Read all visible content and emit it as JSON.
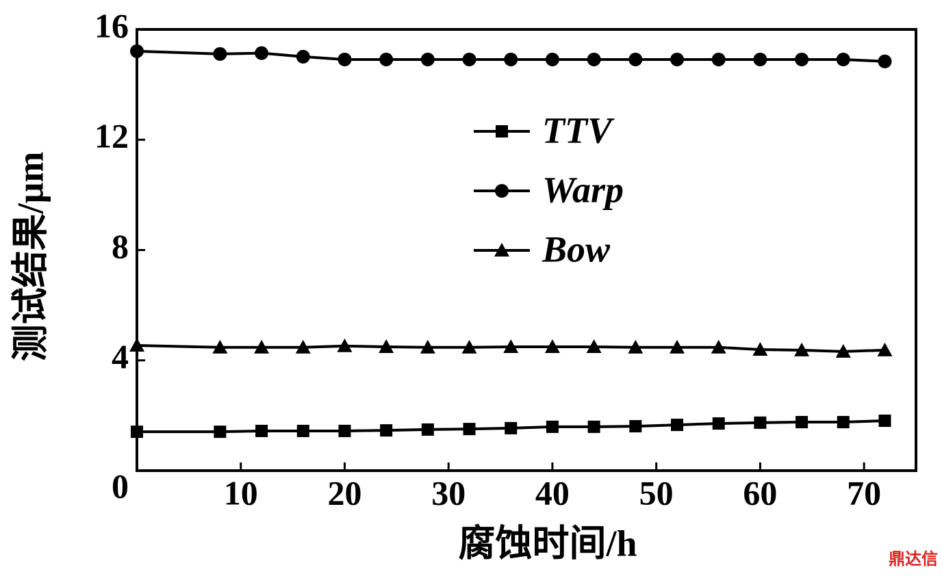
{
  "chart_data": {
    "type": "line",
    "x_label": "腐蚀时间/h",
    "y_label": "测试结果/μm",
    "x": [
      0,
      8,
      12,
      16,
      20,
      24,
      28,
      32,
      36,
      40,
      44,
      48,
      52,
      56,
      60,
      64,
      68,
      72
    ],
    "series": [
      {
        "name": "TTV",
        "color": "#000000",
        "marker": "square",
        "values": [
          1.41,
          1.41,
          1.44,
          1.44,
          1.44,
          1.46,
          1.49,
          1.51,
          1.54,
          1.59,
          1.59,
          1.61,
          1.66,
          1.71,
          1.74,
          1.76,
          1.76,
          1.81
        ]
      },
      {
        "name": "Warp",
        "color": "#000000",
        "marker": "circle",
        "values": [
          15.21,
          15.11,
          15.14,
          15.01,
          14.91,
          14.91,
          14.91,
          14.91,
          14.91,
          14.91,
          14.91,
          14.91,
          14.91,
          14.91,
          14.91,
          14.91,
          14.91,
          14.84
        ]
      },
      {
        "name": "Bow",
        "color": "#000000",
        "marker": "triangle",
        "values": [
          4.54,
          4.47,
          4.47,
          4.47,
          4.52,
          4.49,
          4.47,
          4.47,
          4.49,
          4.49,
          4.49,
          4.47,
          4.47,
          4.47,
          4.39,
          4.37,
          4.32,
          4.37
        ]
      }
    ],
    "xlim": [
      0,
      75
    ],
    "xticks": [
      10,
      20,
      30,
      40,
      50,
      60,
      70
    ],
    "ylim": [
      0,
      16
    ],
    "yticks": [
      0,
      4,
      8,
      12,
      16
    ],
    "legend_position": "upper center",
    "grid": false,
    "watermark": "鼎达信"
  }
}
